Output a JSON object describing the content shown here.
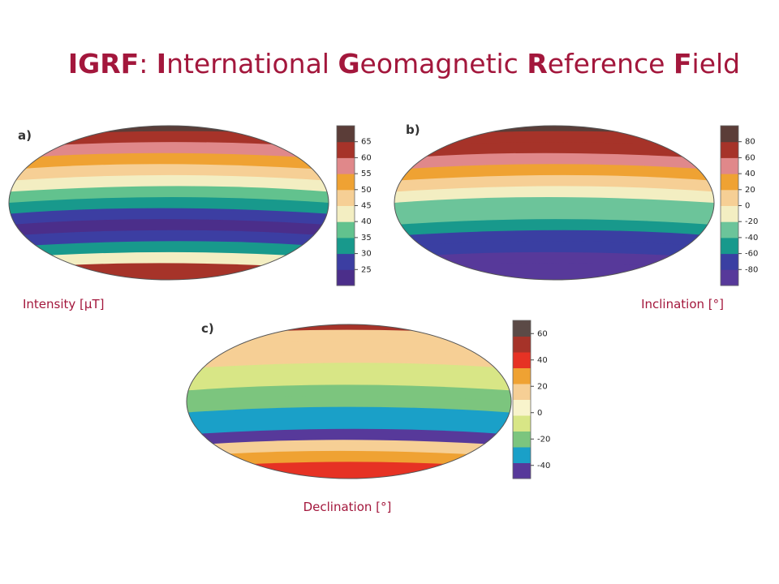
{
  "title": [
    {
      "text": "IGRF",
      "bold": true
    },
    {
      "text": ": ",
      "bold": false
    },
    {
      "text": "I",
      "bold": true
    },
    {
      "text": "nternational ",
      "bold": false
    },
    {
      "text": "G",
      "bold": true
    },
    {
      "text": "eomagnetic ",
      "bold": false
    },
    {
      "text": "R",
      "bold": true
    },
    {
      "text": "eference ",
      "bold": false
    },
    {
      "text": "F",
      "bold": true
    },
    {
      "text": "ield",
      "bold": false
    }
  ],
  "panels": [
    {
      "label": "a)",
      "caption": "Intensity [μT]",
      "lim": [
        20,
        70
      ],
      "ticks": [
        25,
        30,
        35,
        40,
        45,
        50,
        55,
        60,
        65
      ],
      "colors": [
        "#4b2e8a",
        "#3c3ea2",
        "#18998c",
        "#62c28e",
        "#f3eec2",
        "#f6cf95",
        "#efa233",
        "#e0888a",
        "#a63329",
        "#5b3d38"
      ]
    },
    {
      "label": "b)",
      "caption": "Inclination [°]",
      "lim": [
        -100,
        100
      ],
      "ticks": [
        -80,
        -60,
        -40,
        -20,
        0,
        20,
        40,
        60,
        80
      ],
      "colors": [
        "#57399a",
        "#3a3fa2",
        "#18998c",
        "#6cc49a",
        "#f3eec2",
        "#f6cf95",
        "#efa233",
        "#e0888a",
        "#a63329",
        "#5b3d38"
      ]
    },
    {
      "label": "c)",
      "caption": "Declination [°]",
      "lim": [
        -50,
        70
      ],
      "ticks": [
        -40,
        -20,
        0,
        20,
        40,
        60
      ],
      "colors": [
        "#57399a",
        "#1aa0c8",
        "#7cc57e",
        "#d8e686",
        "#f8f4cc",
        "#f6cf95",
        "#efa233",
        "#e63224",
        "#a63329",
        "#5b4a46"
      ]
    }
  ]
}
